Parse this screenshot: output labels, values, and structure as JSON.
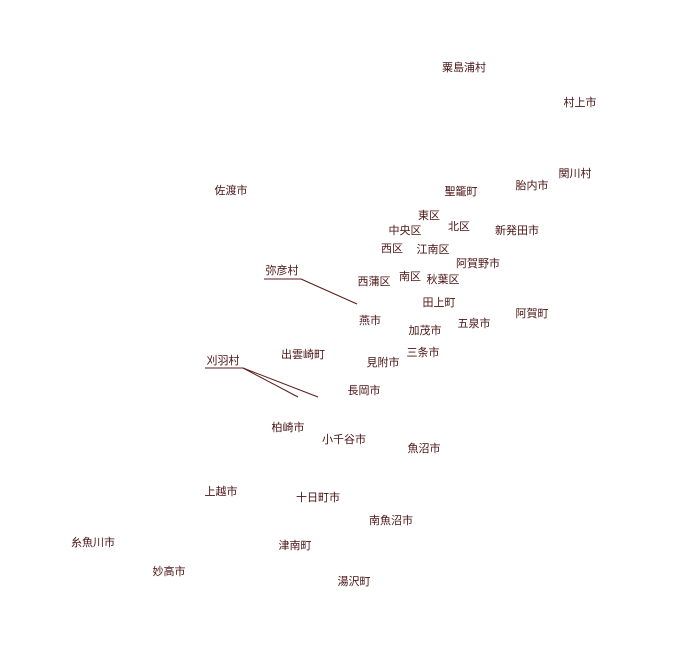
{
  "map": {
    "labels": [
      "粟島浦村",
      "村上市",
      "関川村",
      "佐渡市",
      "聖籠町",
      "胎内市",
      "東区",
      "北区",
      "中央区",
      "新発田市",
      "西区",
      "江南区",
      "阿賀野市",
      "弥彦村",
      "西蒲区",
      "南区",
      "秋葉区",
      "田上町",
      "阿賀町",
      "燕市",
      "五泉市",
      "加茂市",
      "三条市",
      "刈羽村",
      "出雲崎町",
      "見附市",
      "長岡市",
      "柏崎市",
      "小千谷市",
      "魚沼市",
      "上越市",
      "十日町市",
      "南魚沼市",
      "糸魚川市",
      "津南町",
      "妙高市",
      "湯沢町"
    ]
  }
}
